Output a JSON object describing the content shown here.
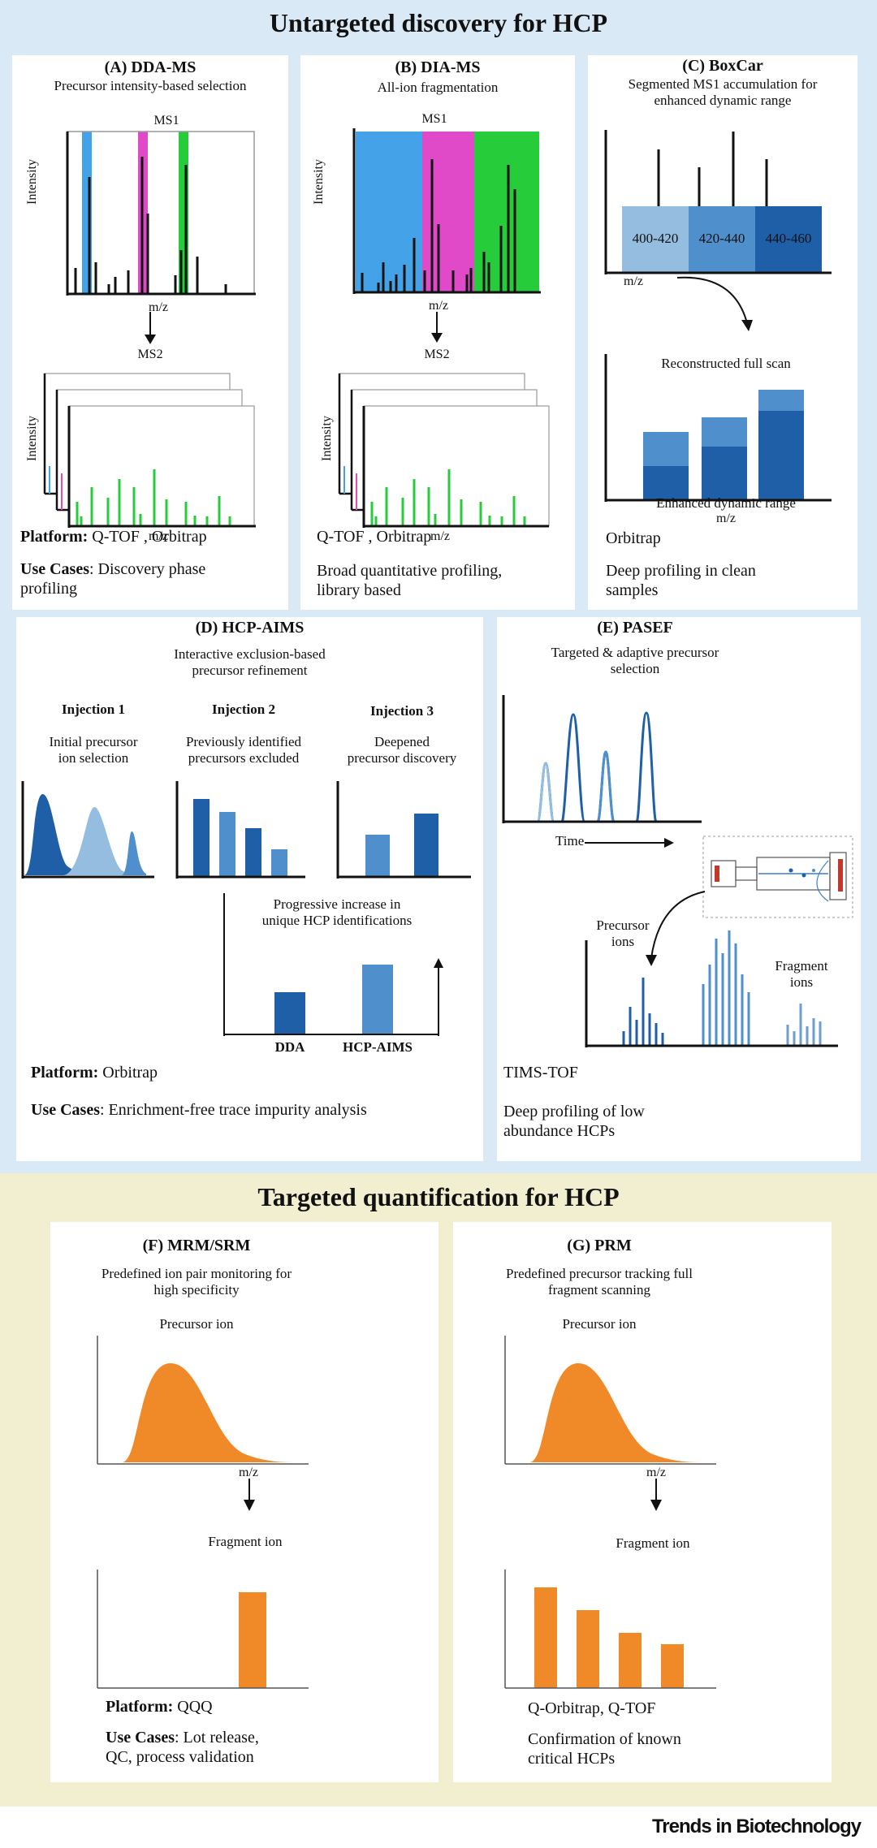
{
  "colors": {
    "top_band": "#d9e9f6",
    "bottom_band": "#f2eed0",
    "blue_dark": "#1f5fa8",
    "blue_mid": "#4f8fcc",
    "blue_light": "#94bde0",
    "green": "#27cc3a",
    "magenta": "#e04ac8",
    "ms_blue": "#44a2e8",
    "orange": "#f08a28"
  },
  "section_untargeted": {
    "title": "Untargeted discovery for HCP"
  },
  "section_targeted": {
    "title": "Targeted quantification  for HCP"
  },
  "panel_a": {
    "title": "(A) DDA-MS",
    "subtitle": "Precursor intensity-based selection",
    "ms1_label": "MS1",
    "ms2_label": "MS2",
    "y_label": "Intensity",
    "x_label": "m/z",
    "x_label_2": "m/z",
    "platform_label": "Platform:",
    "platform_value": " Q-TOF , Orbitrap",
    "use_label": "Use Cases",
    "use_value": ": Discovery phase",
    "use_value_2": "profiling"
  },
  "panel_b": {
    "title": "(B) DIA-MS",
    "subtitle": "All-ion fragmentation",
    "ms1_label": "MS1",
    "ms2_label": "MS2",
    "y_label": "Intensity",
    "x_label": "m/z",
    "x_label_2": "m/z",
    "platform_value": "Q-TOF , Orbitrap",
    "use_line1": "Broad quantitative profiling,",
    "use_line2": "library based"
  },
  "panel_c": {
    "title": "(C) BoxCar",
    "subtitle_1": "Segmented MS1 accumulation for",
    "subtitle_2": "enhanced dynamic range",
    "windows": [
      "400-420",
      "420-440",
      "440-460"
    ],
    "x_label": "m/z",
    "recon_label": "Reconstructed full scan",
    "enhanced_label": "Enhanced dynamic range",
    "x_label_2": "m/z",
    "platform_value": "Orbitrap",
    "use_line1": "Deep profiling in clean",
    "use_line2": "samples"
  },
  "panel_d": {
    "title": "(D) HCP-AIMS",
    "subtitle_1": "Interactive exclusion-based",
    "subtitle_2": "precursor refinement",
    "inj1_title": "Injection 1",
    "inj1_desc_1": "Initial precursor",
    "inj1_desc_2": "ion selection",
    "inj2_title": "Injection 2",
    "inj2_desc_1": "Previously identified",
    "inj2_desc_2": "precursors excluded",
    "inj3_title": "Injection 3",
    "inj3_desc_1": "Deepened",
    "inj3_desc_2": "precursor discovery",
    "progress_1": "Progressive increase in",
    "progress_2": "unique HCP identifications",
    "bar_labels": [
      "DDA",
      "HCP-AIMS"
    ],
    "bar_values": [
      0.42,
      0.7
    ],
    "platform_label": "Platform:",
    "platform_value": " Orbitrap",
    "use_label": "Use Cases",
    "use_value": ": Enrichment-free trace impurity analysis"
  },
  "panel_e": {
    "title": "(E) PASEF",
    "subtitle_1": "Targeted & adaptive precursor",
    "subtitle_2": "selection",
    "time_label": "Time",
    "precursor_1": "Precursor",
    "precursor_2": "ions",
    "fragment_1": "Fragment",
    "fragment_2": "ions",
    "platform_value": "TIMS-TOF",
    "use_line1": "Deep profiling of low",
    "use_line2": "abundance HCPs"
  },
  "panel_f": {
    "title": "(F) MRM/SRM",
    "subtitle_1": "Predefined ion pair monitoring for",
    "subtitle_2": "high specificity",
    "precursor": "Precursor ion",
    "x_label": "m/z",
    "fragment": "Fragment ion",
    "platform_label": "Platform:",
    "platform_value": " QQQ",
    "use_label": "Use Cases",
    "use_value": ": Lot release,",
    "use_value_2": "QC, process validation"
  },
  "panel_g": {
    "title": "(G) PRM",
    "subtitle_1": "Predefined precursor tracking full",
    "subtitle_2": "fragment scanning",
    "precursor": "Precursor ion",
    "x_label": "m/z",
    "fragment": "Fragment ion",
    "platform_value": "Q-Orbitrap, Q-TOF",
    "use_line1": "Confirmation of known",
    "use_line2": "critical HCPs"
  },
  "footer": {
    "brand": "Trends in Biotechnology"
  }
}
